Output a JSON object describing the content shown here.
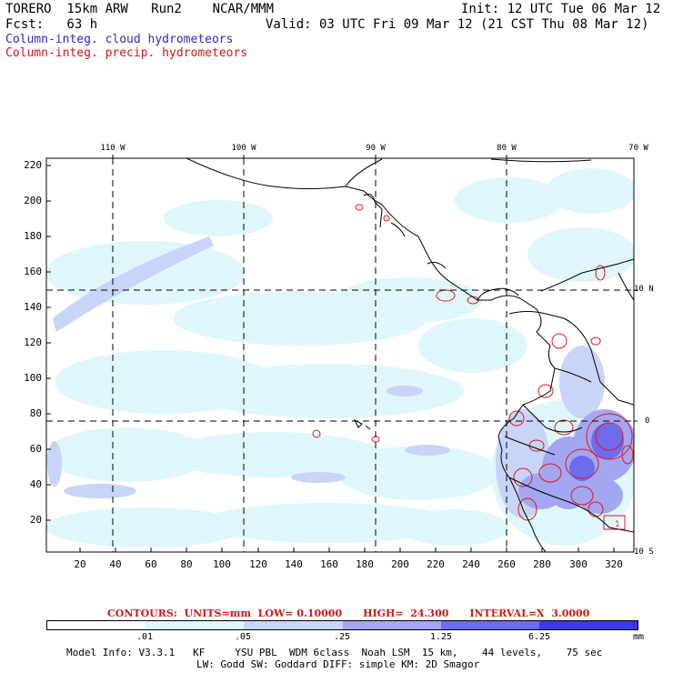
{
  "header": {
    "model": "TORERO  15km ARW   Run2    NCAR/MMM",
    "init": "Init: 12 UTC Tue 06 Mar 12",
    "fcst": "Fcst:   63 h",
    "valid": "Valid: 03 UTC Fri 09 Mar 12 (21 CST Thu 08 Mar 12)",
    "field1": "Column-integ. cloud hydrometeors",
    "field2": "Column-integ. precip. hydrometeors"
  },
  "colors": {
    "cloud_field": "#2a2ad0",
    "precip_field": "#d01818",
    "land": "#000000"
  },
  "map": {
    "lon_labels": [
      "110 W",
      "100 W",
      "90 W",
      "80 W",
      "70 W"
    ],
    "lat_labels": [
      "10 N",
      "0",
      "10 S"
    ],
    "y_ticks": [
      "220",
      "200",
      "180",
      "160",
      "140",
      "120",
      "100",
      "80",
      "60",
      "40",
      "20"
    ],
    "x_ticks": [
      "20",
      "40",
      "60",
      "80",
      "100",
      "120",
      "140",
      "160",
      "180",
      "200",
      "220",
      "240",
      "260",
      "280",
      "300",
      "320"
    ],
    "box_label": "1"
  },
  "legend": {
    "contours": "CONTOURS:  UNITS=mm  LOW= 0.10000      HIGH=  24.300      INTERVAL=X  3.0000",
    "bins": [
      ".01",
      ".05",
      ".25",
      "1.25",
      "6.25"
    ],
    "unit": "mm",
    "colors": [
      "#ffffff",
      "#dff7fb",
      "#c8d4f8",
      "#a3a7f2",
      "#6c6cec",
      "#3a3ae6",
      "#1a1ae0"
    ]
  },
  "footer": {
    "line1": "Model Info: V3.3.1   KF     YSU PBL  WDM 6class  Noah LSM  15 km,    44 levels,    75 sec",
    "line2": "LW: Godd SW: Goddard DIFF: simple KM: 2D Smagor"
  }
}
